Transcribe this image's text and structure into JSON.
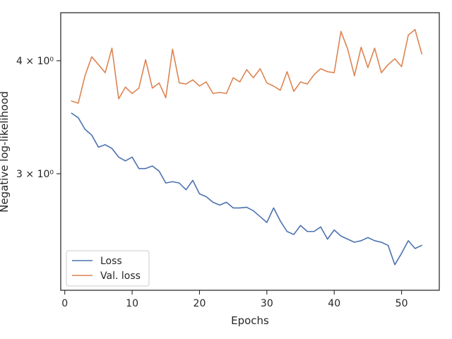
{
  "chart_data": {
    "type": "line",
    "title": "",
    "xlabel": "Epochs",
    "ylabel": "Negative log-likelihood",
    "yscale": "log",
    "xlim": [
      -0.6,
      55.6
    ],
    "ylim": [
      2.23,
      4.52
    ],
    "grid": false,
    "legend_placement": "lower-left",
    "x_ticks": [
      0,
      10,
      20,
      30,
      40,
      50
    ],
    "x_tick_labels": [
      "0",
      "10",
      "20",
      "30",
      "40",
      "50"
    ],
    "y_ticks": [
      3,
      4
    ],
    "y_tick_labels": [
      "3 × 10⁰",
      "4 × 10⁰"
    ],
    "x": [
      1,
      2,
      3,
      4,
      5,
      6,
      7,
      8,
      9,
      10,
      11,
      12,
      13,
      14,
      15,
      16,
      17,
      18,
      19,
      20,
      21,
      22,
      23,
      24,
      25,
      26,
      27,
      28,
      29,
      30,
      31,
      32,
      33,
      34,
      35,
      36,
      37,
      38,
      39,
      40,
      41,
      42,
      43,
      44,
      45,
      46,
      47,
      48,
      49,
      50,
      51,
      52,
      53
    ],
    "series": [
      {
        "name": "Loss",
        "color": "#4c72b0",
        "values": [
          3.5,
          3.46,
          3.36,
          3.31,
          3.21,
          3.23,
          3.2,
          3.13,
          3.1,
          3.13,
          3.04,
          3.04,
          3.06,
          3.02,
          2.93,
          2.94,
          2.93,
          2.88,
          2.95,
          2.85,
          2.83,
          2.79,
          2.77,
          2.79,
          2.75,
          2.75,
          2.755,
          2.73,
          2.69,
          2.65,
          2.75,
          2.66,
          2.59,
          2.57,
          2.63,
          2.59,
          2.59,
          2.62,
          2.54,
          2.6,
          2.56,
          2.54,
          2.52,
          2.53,
          2.55,
          2.53,
          2.52,
          2.5,
          2.38,
          2.45,
          2.53,
          2.48,
          2.5
        ]
      },
      {
        "name": "Val. loss",
        "color": "#dd8452",
        "values": [
          3.61,
          3.59,
          3.85,
          4.04,
          3.96,
          3.88,
          4.13,
          3.63,
          3.74,
          3.68,
          3.73,
          4.01,
          3.73,
          3.78,
          3.64,
          4.12,
          3.78,
          3.77,
          3.81,
          3.75,
          3.79,
          3.68,
          3.69,
          3.68,
          3.83,
          3.79,
          3.91,
          3.83,
          3.92,
          3.78,
          3.75,
          3.71,
          3.89,
          3.7,
          3.79,
          3.77,
          3.86,
          3.92,
          3.89,
          3.88,
          4.31,
          4.12,
          3.85,
          4.14,
          3.93,
          4.13,
          3.88,
          3.96,
          4.02,
          3.94,
          4.27,
          4.33,
          4.07
        ]
      }
    ]
  }
}
